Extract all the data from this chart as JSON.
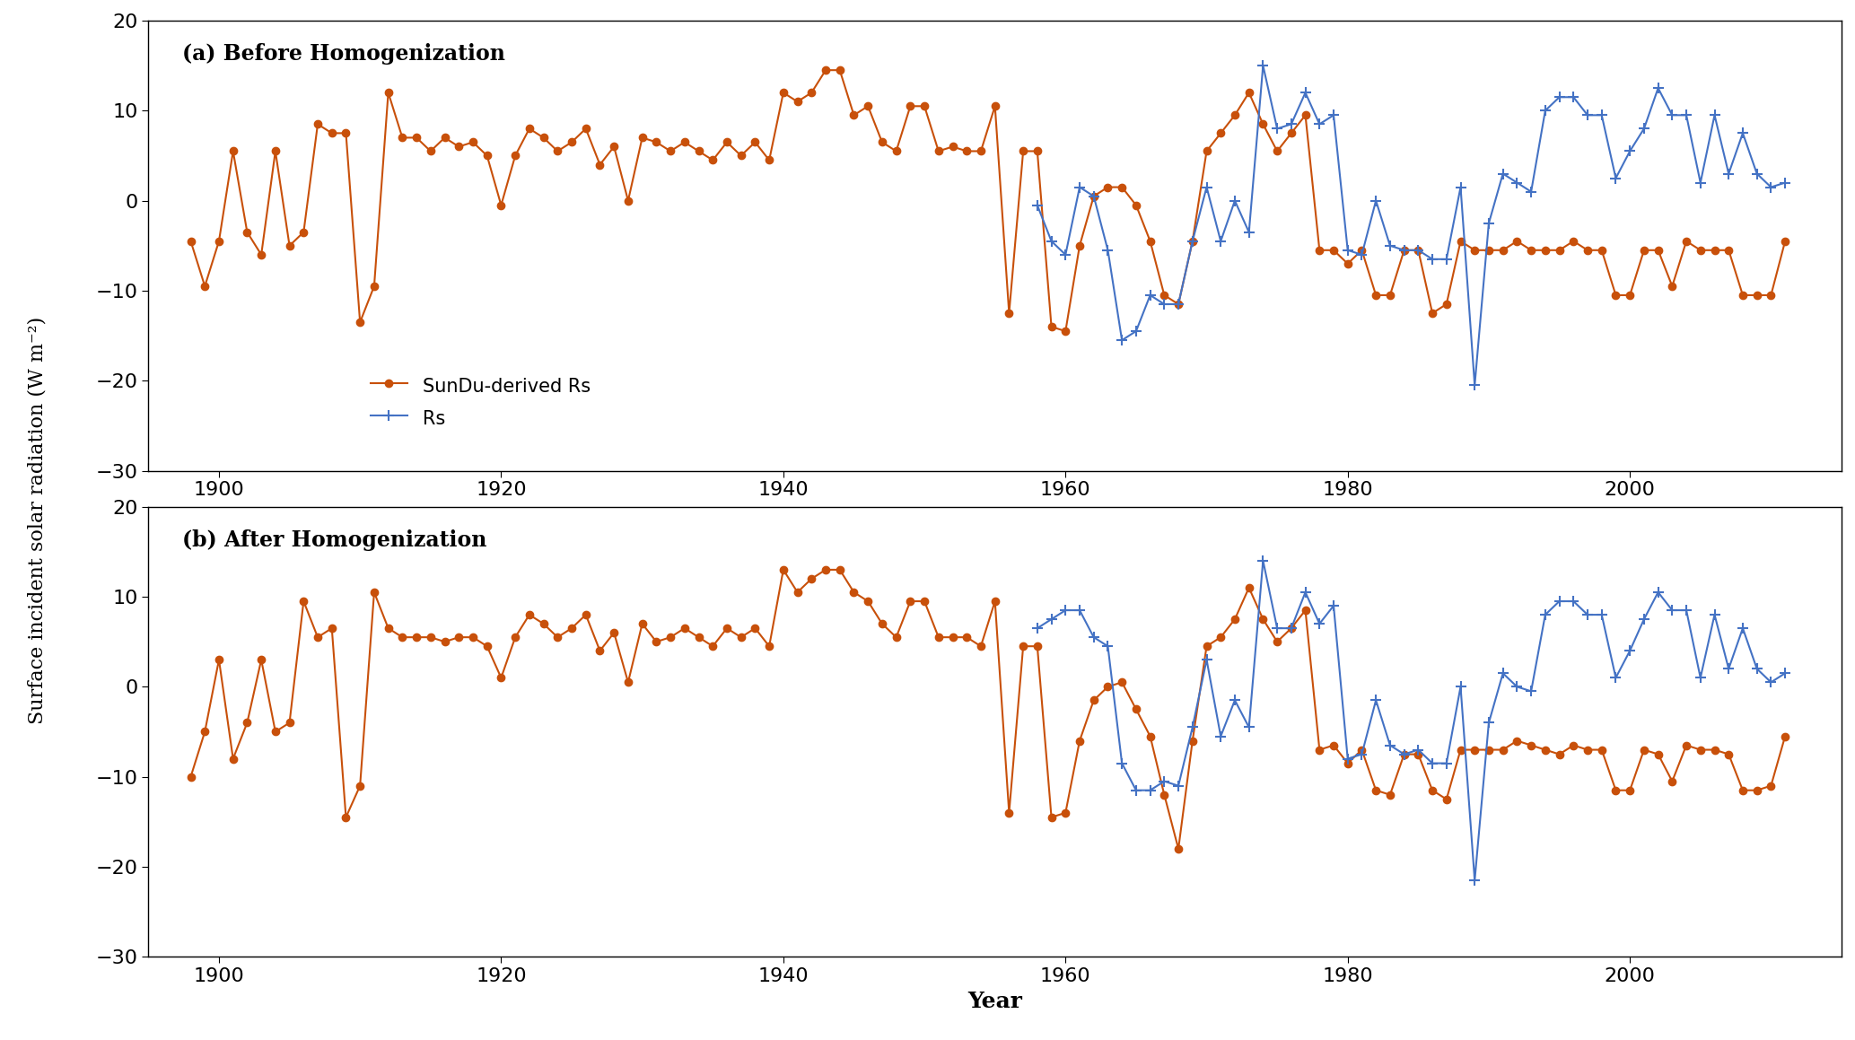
{
  "title_a": "(a) Before Homogenization",
  "title_b": "(b) After Homogenization",
  "ylabel": "Surface incident solar radiation (W m⁻²)",
  "xlabel": "Year",
  "ylim": [
    -30,
    20
  ],
  "yticks": [
    -30,
    -20,
    -10,
    0,
    10,
    20
  ],
  "xlim": [
    1895,
    2015
  ],
  "xticks": [
    1900,
    1920,
    1940,
    1960,
    1980,
    2000
  ],
  "rs_color": "#4472C4",
  "sundu_color": "#C8500A",
  "legend_labels": [
    "Rs",
    "SunDu-derived Rs"
  ],
  "sundu_years": [
    1898,
    1899,
    1900,
    1901,
    1902,
    1903,
    1904,
    1905,
    1906,
    1907,
    1908,
    1909,
    1910,
    1911,
    1912,
    1913,
    1914,
    1915,
    1916,
    1917,
    1918,
    1919,
    1920,
    1921,
    1922,
    1923,
    1924,
    1925,
    1926,
    1927,
    1928,
    1929,
    1930,
    1931,
    1932,
    1933,
    1934,
    1935,
    1936,
    1937,
    1938,
    1939,
    1940,
    1941,
    1942,
    1943,
    1944,
    1945,
    1946,
    1947,
    1948,
    1949,
    1950,
    1951,
    1952,
    1953,
    1954,
    1955,
    1956,
    1957,
    1958,
    1959,
    1960,
    1961,
    1962,
    1963,
    1964,
    1965,
    1966,
    1967,
    1968,
    1969,
    1970,
    1971,
    1972,
    1973,
    1974,
    1975,
    1976,
    1977,
    1978,
    1979,
    1980,
    1981,
    1982,
    1983,
    1984,
    1985,
    1986,
    1987,
    1988,
    1989,
    1990,
    1991,
    1992,
    1993,
    1994,
    1995,
    1996,
    1997,
    1998,
    1999,
    2000,
    2001,
    2002,
    2003,
    2004,
    2005,
    2006,
    2007,
    2008,
    2009,
    2010,
    2011
  ],
  "sundu_before": [
    -4.5,
    -9.5,
    -4.5,
    5.5,
    -3.5,
    -6.0,
    5.5,
    -5.0,
    -3.5,
    8.5,
    7.5,
    7.5,
    -13.5,
    -9.5,
    12.0,
    7.0,
    7.0,
    5.5,
    7.0,
    6.0,
    6.5,
    5.0,
    -0.5,
    5.0,
    8.0,
    7.0,
    5.5,
    6.5,
    8.0,
    4.0,
    6.0,
    0.0,
    7.0,
    6.5,
    5.5,
    6.5,
    5.5,
    4.5,
    6.5,
    5.0,
    6.5,
    4.5,
    12.0,
    11.0,
    12.0,
    14.5,
    14.5,
    9.5,
    10.5,
    6.5,
    5.5,
    10.5,
    10.5,
    5.5,
    6.0,
    5.5,
    5.5,
    10.5,
    -12.5,
    5.5,
    5.5,
    -14.0,
    -14.5,
    -5.0,
    0.5,
    1.5,
    1.5,
    -0.5,
    -4.5,
    -10.5,
    -11.5,
    -4.5,
    5.5,
    7.5,
    9.5,
    12.0,
    8.5,
    5.5,
    7.5,
    9.5,
    -5.5,
    -5.5,
    -7.0,
    -5.5,
    -10.5,
    -10.5,
    -5.5,
    -5.5,
    -12.5,
    -11.5,
    -4.5,
    -5.5,
    -5.5,
    -5.5,
    -4.5,
    -5.5,
    -5.5,
    -5.5,
    -4.5,
    -5.5,
    -5.5,
    -10.5,
    -10.5,
    -5.5,
    -5.5,
    -9.5,
    -4.5,
    -5.5,
    -5.5,
    -5.5,
    -10.5,
    -10.5,
    -10.5,
    -4.5
  ],
  "sundu_after": [
    -10.0,
    -5.0,
    3.0,
    -8.0,
    -4.0,
    3.0,
    -5.0,
    -4.0,
    9.5,
    5.5,
    6.5,
    -14.5,
    -11.0,
    10.5,
    6.5,
    5.5,
    5.5,
    5.5,
    5.0,
    5.5,
    5.5,
    4.5,
    1.0,
    5.5,
    8.0,
    7.0,
    5.5,
    6.5,
    8.0,
    4.0,
    6.0,
    0.5,
    7.0,
    5.0,
    5.5,
    6.5,
    5.5,
    4.5,
    6.5,
    5.5,
    6.5,
    4.5,
    13.0,
    10.5,
    12.0,
    13.0,
    13.0,
    10.5,
    9.5,
    7.0,
    5.5,
    9.5,
    9.5,
    5.5,
    5.5,
    5.5,
    4.5,
    9.5,
    -14.0,
    4.5,
    4.5,
    -14.5,
    -14.0,
    -6.0,
    -1.5,
    0.0,
    0.5,
    -2.5,
    -5.5,
    -12.0,
    -18.0,
    -6.0,
    4.5,
    5.5,
    7.5,
    11.0,
    7.5,
    5.0,
    6.5,
    8.5,
    -7.0,
    -6.5,
    -8.5,
    -7.0,
    -11.5,
    -12.0,
    -7.5,
    -7.5,
    -11.5,
    -12.5,
    -7.0,
    -7.0,
    -7.0,
    -7.0,
    -6.0,
    -6.5,
    -7.0,
    -7.5,
    -6.5,
    -7.0,
    -7.0,
    -11.5,
    -11.5,
    -7.0,
    -7.5,
    -10.5,
    -6.5,
    -7.0,
    -7.0,
    -7.5,
    -11.5,
    -11.5,
    -11.0,
    -5.5
  ],
  "rs_before_years": [
    1958,
    1959,
    1960,
    1961,
    1962,
    1963,
    1964,
    1965,
    1966,
    1967,
    1968,
    1969,
    1970,
    1971,
    1972,
    1973,
    1974,
    1975,
    1976,
    1977,
    1978,
    1979,
    1980,
    1981,
    1982,
    1983,
    1984,
    1985,
    1986,
    1987,
    1988,
    1989,
    1990,
    1991,
    1992,
    1993,
    1994,
    1995,
    1996,
    1997,
    1998,
    1999,
    2000,
    2001,
    2002,
    2003,
    2004,
    2005,
    2006,
    2007,
    2008,
    2009,
    2010,
    2011
  ],
  "rs_before": [
    -0.5,
    -4.5,
    -6.0,
    1.5,
    0.5,
    -5.5,
    -15.5,
    -14.5,
    -10.5,
    -11.5,
    -11.5,
    -4.5,
    1.5,
    -4.5,
    0.0,
    -3.5,
    15.0,
    8.0,
    8.5,
    12.0,
    8.5,
    9.5,
    -5.5,
    -6.0,
    0.0,
    -5.0,
    -5.5,
    -5.5,
    -6.5,
    -6.5,
    1.5,
    -20.5,
    -2.5,
    3.0,
    2.0,
    1.0,
    10.0,
    11.5,
    11.5,
    9.5,
    9.5,
    2.5,
    5.5,
    8.0,
    12.5,
    9.5,
    9.5,
    2.0,
    9.5,
    3.0,
    7.5,
    3.0,
    1.5,
    2.0
  ],
  "rs_after_years": [
    1958,
    1959,
    1960,
    1961,
    1962,
    1963,
    1964,
    1965,
    1966,
    1967,
    1968,
    1969,
    1970,
    1971,
    1972,
    1973,
    1974,
    1975,
    1976,
    1977,
    1978,
    1979,
    1980,
    1981,
    1982,
    1983,
    1984,
    1985,
    1986,
    1987,
    1988,
    1989,
    1990,
    1991,
    1992,
    1993,
    1994,
    1995,
    1996,
    1997,
    1998,
    1999,
    2000,
    2001,
    2002,
    2003,
    2004,
    2005,
    2006,
    2007,
    2008,
    2009,
    2010,
    2011
  ],
  "rs_after": [
    6.5,
    7.5,
    8.5,
    8.5,
    5.5,
    4.5,
    -8.5,
    -11.5,
    -11.5,
    -10.5,
    -11.0,
    -4.5,
    3.0,
    -5.5,
    -1.5,
    -4.5,
    14.0,
    6.5,
    6.5,
    10.5,
    7.0,
    9.0,
    -8.0,
    -7.5,
    -1.5,
    -6.5,
    -7.5,
    -7.0,
    -8.5,
    -8.5,
    0.0,
    -21.5,
    -4.0,
    1.5,
    0.0,
    -0.5,
    8.0,
    9.5,
    9.5,
    8.0,
    8.0,
    1.0,
    4.0,
    7.5,
    10.5,
    8.5,
    8.5,
    1.0,
    8.0,
    2.0,
    6.5,
    2.0,
    0.5,
    1.5
  ]
}
